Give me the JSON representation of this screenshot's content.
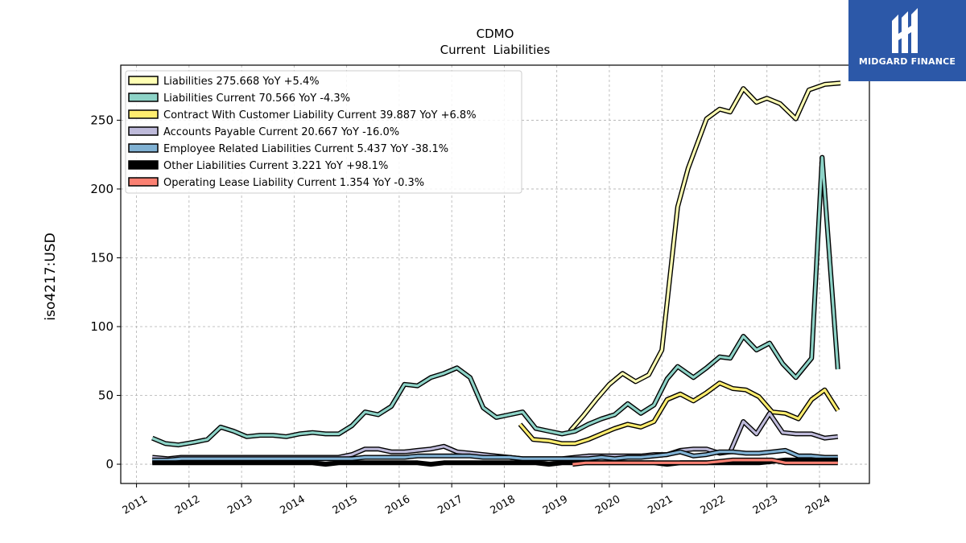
{
  "chart_data": {
    "type": "line",
    "title": "CDMO",
    "subtitle": "Current  Liabilities",
    "ylabel": "iso4217:USD",
    "xlabel": "",
    "xlim": [
      2010.7,
      2024.95
    ],
    "ylim": [
      -14,
      290
    ],
    "x_ticks": [
      "2011",
      "2012",
      "2013",
      "2014",
      "2015",
      "2016",
      "2017",
      "2018",
      "2019",
      "2020",
      "2021",
      "2022",
      "2023",
      "2024"
    ],
    "y_ticks": [
      0,
      50,
      100,
      150,
      200,
      250
    ],
    "grid": true,
    "legend_position": "top-left",
    "series": [
      {
        "name": "Liabilities",
        "legend_label": "Liabilities  275.668 YoY +5.4%",
        "color": "#ffffb3",
        "points": [
          [
            2019.25,
            24
          ],
          [
            2019.5,
            35
          ],
          [
            2019.75,
            47
          ],
          [
            2020.0,
            58
          ],
          [
            2020.25,
            66
          ],
          [
            2020.5,
            60
          ],
          [
            2020.75,
            65
          ],
          [
            2021.0,
            83
          ],
          [
            2021.3,
            187
          ],
          [
            2021.5,
            215
          ],
          [
            2021.85,
            251
          ],
          [
            2022.1,
            258
          ],
          [
            2022.3,
            256
          ],
          [
            2022.55,
            273
          ],
          [
            2022.8,
            263
          ],
          [
            2023.0,
            266
          ],
          [
            2023.25,
            262
          ],
          [
            2023.55,
            251
          ],
          [
            2023.8,
            272
          ],
          [
            2024.1,
            276
          ],
          [
            2024.4,
            277
          ]
        ]
      },
      {
        "name": "Liabilities Current",
        "legend_label": "Liabilities Current  70.566 YoY -4.3%",
        "color": "#8dd3c7",
        "points": [
          [
            2011.3,
            19
          ],
          [
            2011.55,
            15
          ],
          [
            2011.8,
            14
          ],
          [
            2012.1,
            16
          ],
          [
            2012.35,
            18
          ],
          [
            2012.6,
            27
          ],
          [
            2012.85,
            24
          ],
          [
            2013.1,
            20
          ],
          [
            2013.35,
            21
          ],
          [
            2013.6,
            21
          ],
          [
            2013.85,
            20
          ],
          [
            2014.1,
            22
          ],
          [
            2014.35,
            23
          ],
          [
            2014.6,
            22
          ],
          [
            2014.85,
            22
          ],
          [
            2015.1,
            28
          ],
          [
            2015.35,
            38
          ],
          [
            2015.6,
            36
          ],
          [
            2015.85,
            42
          ],
          [
            2016.1,
            58
          ],
          [
            2016.35,
            57
          ],
          [
            2016.6,
            63
          ],
          [
            2016.85,
            66
          ],
          [
            2017.1,
            70
          ],
          [
            2017.35,
            63
          ],
          [
            2017.6,
            41
          ],
          [
            2017.85,
            34
          ],
          [
            2018.1,
            36
          ],
          [
            2018.35,
            38
          ],
          [
            2018.6,
            26
          ],
          [
            2018.85,
            24
          ],
          [
            2019.1,
            22
          ],
          [
            2019.35,
            24
          ],
          [
            2019.6,
            29
          ],
          [
            2019.85,
            33
          ],
          [
            2020.1,
            36
          ],
          [
            2020.35,
            44
          ],
          [
            2020.6,
            37
          ],
          [
            2020.85,
            43
          ],
          [
            2021.1,
            62
          ],
          [
            2021.3,
            71
          ],
          [
            2021.6,
            63
          ],
          [
            2021.85,
            70
          ],
          [
            2022.1,
            78
          ],
          [
            2022.3,
            77
          ],
          [
            2022.55,
            93
          ],
          [
            2022.8,
            83
          ],
          [
            2023.05,
            88
          ],
          [
            2023.3,
            73
          ],
          [
            2023.55,
            63
          ],
          [
            2023.85,
            77
          ],
          [
            2024.05,
            223
          ],
          [
            2024.35,
            69
          ]
        ]
      },
      {
        "name": "Contract With Customer Liability Current",
        "legend_label": "Contract With Customer Liability Current  39.887 YoY +6.8%",
        "color": "#ffed6f",
        "points": [
          [
            2018.3,
            29
          ],
          [
            2018.55,
            18
          ],
          [
            2018.85,
            17
          ],
          [
            2019.1,
            15
          ],
          [
            2019.35,
            15
          ],
          [
            2019.6,
            18
          ],
          [
            2019.85,
            22
          ],
          [
            2020.1,
            26
          ],
          [
            2020.35,
            29
          ],
          [
            2020.6,
            27
          ],
          [
            2020.85,
            31
          ],
          [
            2021.1,
            47
          ],
          [
            2021.35,
            51
          ],
          [
            2021.6,
            46
          ],
          [
            2021.85,
            52
          ],
          [
            2022.1,
            59
          ],
          [
            2022.35,
            55
          ],
          [
            2022.6,
            54
          ],
          [
            2022.85,
            49
          ],
          [
            2023.1,
            38
          ],
          [
            2023.35,
            37
          ],
          [
            2023.6,
            33
          ],
          [
            2023.85,
            47
          ],
          [
            2024.1,
            54
          ],
          [
            2024.35,
            39
          ]
        ]
      },
      {
        "name": "Accounts Payable Current",
        "legend_label": "Accounts Payable Current  20.667 YoY -16.0%",
        "color": "#bebada",
        "points": [
          [
            2011.3,
            5
          ],
          [
            2011.6,
            4
          ],
          [
            2011.85,
            5
          ],
          [
            2012.1,
            5
          ],
          [
            2012.35,
            5
          ],
          [
            2012.6,
            5
          ],
          [
            2012.85,
            5
          ],
          [
            2013.1,
            5
          ],
          [
            2013.35,
            5
          ],
          [
            2013.6,
            5
          ],
          [
            2013.85,
            5
          ],
          [
            2014.1,
            5
          ],
          [
            2014.35,
            5
          ],
          [
            2014.6,
            5
          ],
          [
            2014.85,
            5
          ],
          [
            2015.1,
            7
          ],
          [
            2015.35,
            11
          ],
          [
            2015.6,
            11
          ],
          [
            2015.85,
            9
          ],
          [
            2016.1,
            9
          ],
          [
            2016.35,
            10
          ],
          [
            2016.6,
            11
          ],
          [
            2016.85,
            13
          ],
          [
            2017.1,
            9
          ],
          [
            2017.35,
            8
          ],
          [
            2017.6,
            7
          ],
          [
            2017.85,
            6
          ],
          [
            2018.1,
            5
          ],
          [
            2018.35,
            4
          ],
          [
            2018.6,
            4
          ],
          [
            2018.85,
            4
          ],
          [
            2019.1,
            4
          ],
          [
            2019.35,
            5
          ],
          [
            2019.6,
            6
          ],
          [
            2019.85,
            6
          ],
          [
            2020.1,
            6
          ],
          [
            2020.35,
            6
          ],
          [
            2020.6,
            6
          ],
          [
            2020.85,
            7
          ],
          [
            2021.1,
            7
          ],
          [
            2021.35,
            10
          ],
          [
            2021.6,
            11
          ],
          [
            2021.85,
            11
          ],
          [
            2022.1,
            8
          ],
          [
            2022.3,
            9
          ],
          [
            2022.55,
            31
          ],
          [
            2022.8,
            22
          ],
          [
            2023.05,
            37
          ],
          [
            2023.3,
            23
          ],
          [
            2023.55,
            22
          ],
          [
            2023.85,
            22
          ],
          [
            2024.1,
            19
          ],
          [
            2024.35,
            20
          ]
        ]
      },
      {
        "name": "Employee Related Liabilities Current",
        "legend_label": "Employee Related Liabilities Current  5.437 YoY -38.1%",
        "color": "#80b1d3",
        "points": [
          [
            2011.3,
            3
          ],
          [
            2011.6,
            3
          ],
          [
            2011.85,
            4
          ],
          [
            2012.1,
            4
          ],
          [
            2012.35,
            4
          ],
          [
            2012.6,
            4
          ],
          [
            2012.85,
            4
          ],
          [
            2013.1,
            4
          ],
          [
            2013.35,
            4
          ],
          [
            2013.6,
            4
          ],
          [
            2013.85,
            4
          ],
          [
            2014.1,
            4
          ],
          [
            2014.35,
            4
          ],
          [
            2014.6,
            4
          ],
          [
            2014.85,
            4
          ],
          [
            2015.1,
            4
          ],
          [
            2015.35,
            5
          ],
          [
            2015.6,
            5
          ],
          [
            2015.85,
            5
          ],
          [
            2016.1,
            5
          ],
          [
            2016.35,
            6
          ],
          [
            2016.6,
            6
          ],
          [
            2016.85,
            6
          ],
          [
            2017.1,
            6
          ],
          [
            2017.35,
            6
          ],
          [
            2017.6,
            5
          ],
          [
            2017.85,
            5
          ],
          [
            2018.1,
            5
          ],
          [
            2018.35,
            4
          ],
          [
            2018.6,
            4
          ],
          [
            2018.85,
            4
          ],
          [
            2019.1,
            4
          ],
          [
            2019.35,
            4
          ],
          [
            2019.6,
            4
          ],
          [
            2019.85,
            5
          ],
          [
            2020.1,
            4
          ],
          [
            2020.35,
            5
          ],
          [
            2020.6,
            5
          ],
          [
            2020.85,
            6
          ],
          [
            2021.1,
            7
          ],
          [
            2021.35,
            9
          ],
          [
            2021.6,
            6
          ],
          [
            2021.85,
            7
          ],
          [
            2022.1,
            9
          ],
          [
            2022.35,
            9
          ],
          [
            2022.6,
            8
          ],
          [
            2022.85,
            8
          ],
          [
            2023.1,
            9
          ],
          [
            2023.35,
            10
          ],
          [
            2023.6,
            6
          ],
          [
            2023.85,
            6
          ],
          [
            2024.1,
            5
          ],
          [
            2024.35,
            5
          ]
        ]
      },
      {
        "name": "Other Liabilities Current",
        "legend_label": "Other Liabilities Current  3.221 YoY +98.1%",
        "color": "#000000",
        "points": [
          [
            2011.3,
            1
          ],
          [
            2011.6,
            1
          ],
          [
            2011.85,
            1
          ],
          [
            2012.1,
            1
          ],
          [
            2012.35,
            1
          ],
          [
            2012.6,
            1
          ],
          [
            2012.85,
            1
          ],
          [
            2013.1,
            1
          ],
          [
            2013.35,
            1
          ],
          [
            2013.6,
            1
          ],
          [
            2013.85,
            1
          ],
          [
            2014.1,
            1
          ],
          [
            2014.35,
            1
          ],
          [
            2014.6,
            0
          ],
          [
            2014.85,
            1
          ],
          [
            2015.1,
            1
          ],
          [
            2015.35,
            1
          ],
          [
            2015.6,
            1
          ],
          [
            2015.85,
            1
          ],
          [
            2016.1,
            1
          ],
          [
            2016.35,
            1
          ],
          [
            2016.6,
            0
          ],
          [
            2016.85,
            1
          ],
          [
            2017.1,
            1
          ],
          [
            2017.35,
            1
          ],
          [
            2017.6,
            1
          ],
          [
            2017.85,
            1
          ],
          [
            2018.1,
            1
          ],
          [
            2018.35,
            1
          ],
          [
            2018.6,
            1
          ],
          [
            2018.85,
            0
          ],
          [
            2019.1,
            1
          ],
          [
            2019.35,
            1
          ],
          [
            2019.6,
            1
          ],
          [
            2019.85,
            1
          ],
          [
            2020.1,
            1
          ],
          [
            2020.35,
            1
          ],
          [
            2020.6,
            1
          ],
          [
            2020.85,
            1
          ],
          [
            2021.1,
            0
          ],
          [
            2021.35,
            1
          ],
          [
            2021.6,
            1
          ],
          [
            2021.85,
            1
          ],
          [
            2022.1,
            1
          ],
          [
            2022.35,
            1
          ],
          [
            2022.6,
            1
          ],
          [
            2022.85,
            1
          ],
          [
            2023.1,
            2
          ],
          [
            2023.35,
            3
          ],
          [
            2023.6,
            3
          ],
          [
            2023.85,
            3
          ],
          [
            2024.1,
            3
          ],
          [
            2024.35,
            3
          ]
        ]
      },
      {
        "name": "Operating Lease Liability Current",
        "legend_label": "Operating Lease Liability Current  1.354 YoY -0.3%",
        "color": "#fb8072",
        "points": [
          [
            2019.3,
            0
          ],
          [
            2019.55,
            1
          ],
          [
            2019.85,
            1
          ],
          [
            2020.1,
            1
          ],
          [
            2020.35,
            1
          ],
          [
            2020.6,
            1
          ],
          [
            2020.85,
            1
          ],
          [
            2021.1,
            1
          ],
          [
            2021.35,
            1
          ],
          [
            2021.6,
            1
          ],
          [
            2021.85,
            1
          ],
          [
            2022.1,
            2
          ],
          [
            2022.35,
            3
          ],
          [
            2022.6,
            3
          ],
          [
            2022.85,
            3
          ],
          [
            2023.1,
            3
          ],
          [
            2023.35,
            1
          ],
          [
            2023.6,
            1
          ],
          [
            2023.85,
            1
          ],
          [
            2024.1,
            1
          ],
          [
            2024.35,
            1
          ]
        ]
      }
    ]
  },
  "logo": {
    "text": "MIDGARD FINANCE",
    "background": "#2c58a8"
  }
}
